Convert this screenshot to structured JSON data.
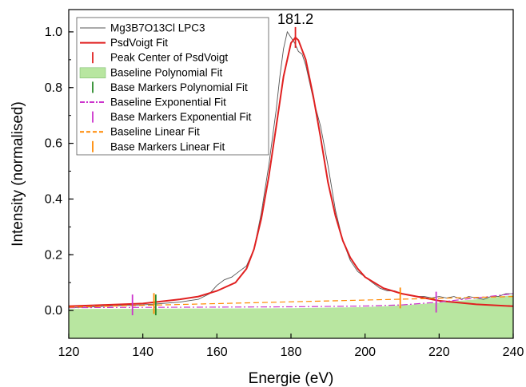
{
  "chart_data": {
    "type": "line",
    "xlabel": "Energie (eV)",
    "ylabel": "Intensity (normalised)",
    "xlim": [
      120,
      240
    ],
    "ylim": [
      -0.1,
      1.08
    ],
    "xticks": [
      120,
      140,
      160,
      180,
      200,
      220,
      240
    ],
    "yticks": [
      0.0,
      0.2,
      0.4,
      0.6,
      0.8,
      1.0
    ],
    "grid": false,
    "legend_position": "top-left",
    "annotation": {
      "text": "181.2",
      "x": 181.2,
      "y": 1.0
    },
    "series": [
      {
        "name": "Mg3B7O13Cl LPC3",
        "style": "line",
        "color": "#555555",
        "x": [
          120,
          125,
          130,
          135,
          140,
          145,
          150,
          155,
          158,
          160,
          162,
          164,
          166,
          168,
          170,
          172,
          174,
          176,
          177,
          178,
          179,
          180,
          181,
          182,
          183,
          184,
          185,
          186,
          188,
          190,
          192,
          194,
          196,
          198,
          200,
          202,
          204,
          206,
          208,
          210,
          212,
          214,
          216,
          218,
          220,
          222,
          224,
          226,
          228,
          230,
          232,
          234,
          236,
          238,
          240
        ],
        "y": [
          0.01,
          0.012,
          0.015,
          0.018,
          0.02,
          0.025,
          0.03,
          0.04,
          0.06,
          0.09,
          0.11,
          0.12,
          0.14,
          0.16,
          0.22,
          0.35,
          0.52,
          0.72,
          0.84,
          0.94,
          1.0,
          0.98,
          0.96,
          0.93,
          0.92,
          0.88,
          0.82,
          0.76,
          0.66,
          0.52,
          0.36,
          0.25,
          0.18,
          0.14,
          0.12,
          0.1,
          0.08,
          0.07,
          0.07,
          0.06,
          0.055,
          0.05,
          0.05,
          0.045,
          0.05,
          0.045,
          0.05,
          0.04,
          0.05,
          0.045,
          0.04,
          0.05,
          0.05,
          0.06,
          0.06
        ]
      },
      {
        "name": "PsdVoigt Fit",
        "style": "line",
        "color": "#e02020",
        "x": [
          120,
          130,
          140,
          150,
          155,
          160,
          165,
          168,
          170,
          172,
          174,
          176,
          178,
          180,
          181.2,
          182,
          184,
          186,
          188,
          190,
          192,
          194,
          196,
          198,
          200,
          205,
          210,
          220,
          230,
          240
        ],
        "y": [
          0.015,
          0.02,
          0.025,
          0.04,
          0.05,
          0.07,
          0.1,
          0.15,
          0.22,
          0.33,
          0.48,
          0.66,
          0.84,
          0.96,
          0.98,
          0.97,
          0.9,
          0.77,
          0.62,
          0.46,
          0.34,
          0.25,
          0.19,
          0.15,
          0.12,
          0.08,
          0.06,
          0.035,
          0.022,
          0.015
        ]
      },
      {
        "name": "Peak Center of PsdVoigt",
        "style": "marker",
        "color": "#e02020",
        "x": [
          181.2
        ],
        "y": [
          0.98
        ]
      },
      {
        "name": "Baseline Polynomial Fit",
        "style": "fill",
        "color": "#b8e6a0",
        "x": [
          120,
          140,
          160,
          180,
          200,
          210,
          220,
          230,
          240
        ],
        "y": [
          0.005,
          0.006,
          0.007,
          0.008,
          0.012,
          0.018,
          0.028,
          0.04,
          0.055
        ]
      },
      {
        "name": "Base Markers Polynomial Fit",
        "style": "marker",
        "color": "#2a8a2a",
        "x": [
          143.5
        ],
        "y": [
          0.02
        ]
      },
      {
        "name": "Baseline Exponential Fit",
        "style": "dashdot",
        "color": "#cc33cc",
        "x": [
          120,
          140,
          160,
          180,
          200,
          210,
          220,
          230,
          240
        ],
        "y": [
          0.01,
          0.011,
          0.012,
          0.013,
          0.016,
          0.02,
          0.03,
          0.045,
          0.06
        ]
      },
      {
        "name": "Base Markers Exponential Fit",
        "style": "marker",
        "color": "#cc33cc",
        "x": [
          137.2,
          219.2
        ],
        "y": [
          0.02,
          0.03
        ]
      },
      {
        "name": "Baseline Linear Fit",
        "style": "dashed",
        "color": "#ff8800",
        "x": [
          120,
          240
        ],
        "y": [
          0.012,
          0.05
        ]
      },
      {
        "name": "Base Markers Linear Fit",
        "style": "marker",
        "color": "#ff8800",
        "x": [
          143.0,
          209.5
        ],
        "y": [
          0.025,
          0.045
        ]
      }
    ]
  }
}
